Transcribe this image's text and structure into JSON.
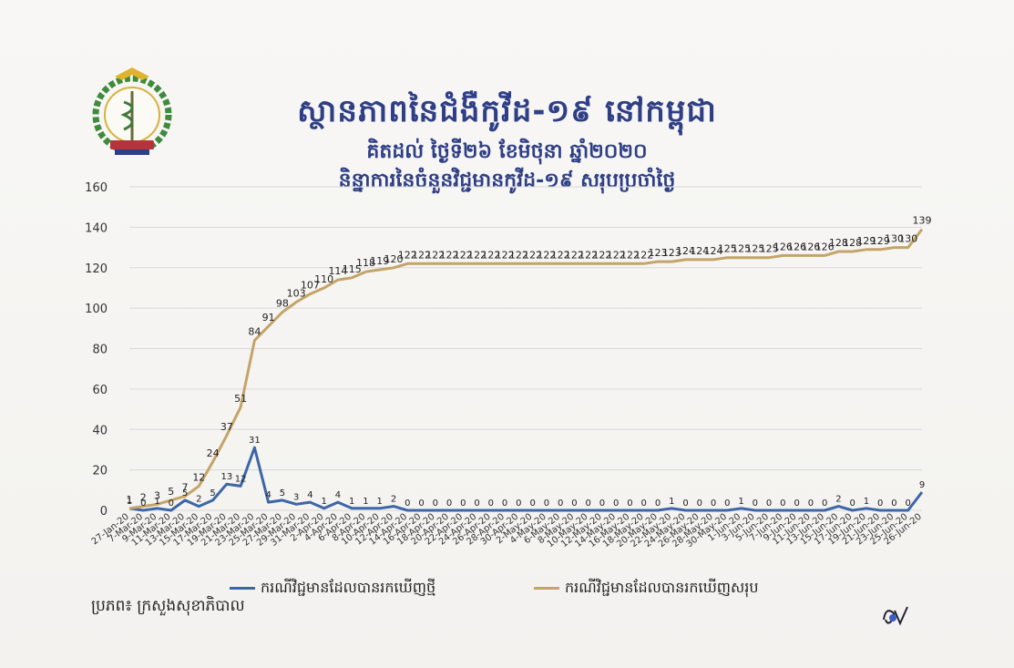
{
  "title": "ស្ថានភាពនៃជំងឺកូវីដ-១៩ នៅកម្ពុជា",
  "subtitle_date": "គិតដល់ ថ្ងៃទី២៦ ខែមិថុនា ឆ្នាំ២០២០",
  "subtitle_desc": "និន្នាការនៃចំនួនវិជ្ជមានកូវីដ-១៩ សរុបប្រចាំថ្ងៃ",
  "source": "ប្រភព៖ ក្រសួងសុខាភិបាល",
  "colors": {
    "total": "#c4a468",
    "new": "#3d66a8",
    "title": "#2f3f86",
    "grid": "#d9d9d9"
  },
  "logo": {
    "icon": "ministry-of-health-emblem"
  },
  "chart_data": {
    "type": "line",
    "x": [
      "27-Jan-20",
      "7-Mar-20",
      "9-Mar-20",
      "11-Mar-20",
      "13-Mar-20",
      "15-Mar-20",
      "17-Mar-20",
      "19-Mar-20",
      "21-Mar-20",
      "23-Mar-20",
      "25-Mar-20",
      "27-Mar-20",
      "29-Mar-20",
      "31-Mar-20",
      "2-Apr-20",
      "4-Apr-20",
      "6-Apr-20",
      "8-Apr-20",
      "10-Apr-20",
      "12-Apr-20",
      "14-Apr-20",
      "16-Apr-20",
      "18-Apr-20",
      "20-Apr-20",
      "22-Apr-20",
      "24-Apr-20",
      "26-Apr-20",
      "28-Apr-20",
      "30-Apr-20",
      "2-May-20",
      "4-May-20",
      "6-May-20",
      "8-May-20",
      "10-May-20",
      "12-May-20",
      "14-May-20",
      "16-May-20",
      "18-May-20",
      "20-May-20",
      "22-May-20",
      "24-May-20",
      "26-May-20",
      "28-May-20",
      "30-May-20",
      "1-Jun-20",
      "3-Jun-20",
      "5-Jun-20",
      "7-Jun-20",
      "9-Jun-20",
      "11-Jun-20",
      "13-Jun-20",
      "15-Jun-20",
      "17-Jun-20",
      "19-Jun-20",
      "21-Jun-20",
      "23-Jun-20",
      "25-Jun-20",
      "26-Jun-20"
    ],
    "ylim": [
      0,
      160
    ],
    "yticks": [
      0,
      20,
      40,
      60,
      80,
      100,
      120,
      140,
      160
    ],
    "grid": true,
    "legend_position": "bottom",
    "series": [
      {
        "name": "ករណីវិជ្ជមានដែលបានរកឃើញថ្មី",
        "values": [
          1,
          0,
          1,
          0,
          5,
          2,
          5,
          13,
          12,
          31,
          4,
          5,
          3,
          4,
          1,
          4,
          1,
          1,
          1,
          2,
          0,
          0,
          0,
          0,
          0,
          0,
          0,
          0,
          0,
          0,
          0,
          0,
          0,
          0,
          0,
          0,
          0,
          0,
          0,
          1,
          0,
          0,
          0,
          0,
          1,
          0,
          0,
          0,
          0,
          0,
          0,
          2,
          0,
          1,
          0,
          0,
          0,
          9
        ]
      },
      {
        "name": "ករណីវិជ្ជមានដែលបានរកឃើញសរុប",
        "values": [
          1,
          2,
          3,
          5,
          7,
          12,
          24,
          37,
          51,
          84,
          91,
          98,
          103,
          107,
          110,
          114,
          115,
          118,
          119,
          120,
          122,
          122,
          122,
          122,
          122,
          122,
          122,
          122,
          122,
          122,
          122,
          122,
          122,
          122,
          122,
          122,
          122,
          122,
          123,
          123,
          124,
          124,
          124,
          125,
          125,
          125,
          125,
          126,
          126,
          126,
          126,
          128,
          128,
          129,
          129,
          130,
          130,
          139
        ]
      }
    ],
    "new_point_labels": [
      "1",
      "0",
      "1",
      "0",
      "5",
      "2",
      "5",
      "13",
      "12",
      "31",
      "4",
      "5",
      "3",
      "4",
      "1",
      "4",
      "1",
      "1",
      "1",
      "2",
      "0",
      "0",
      "0",
      "0",
      "0",
      "0",
      "0",
      "0",
      "0",
      "0",
      "0",
      "0",
      "0",
      "0",
      "0",
      "0",
      "0",
      "0",
      "0",
      "1",
      "0",
      "0",
      "0",
      "0",
      "1",
      "0",
      "0",
      "0",
      "0",
      "0",
      "0",
      "2",
      "0",
      "1",
      "0",
      "0",
      "0",
      "9"
    ],
    "total_point_labels": [
      "1",
      "2",
      "3",
      "5",
      "7",
      "12",
      "24",
      "37",
      "51",
      "84",
      "91",
      "98",
      "103",
      "107",
      "110",
      "114",
      "115",
      "118",
      "119",
      "120",
      "122",
      "122",
      "122",
      "122",
      "122",
      "122",
      "122",
      "122",
      "122",
      "122",
      "122",
      "122",
      "122",
      "122",
      "122",
      "122",
      "122",
      "122",
      "123",
      "123",
      "124",
      "124",
      "124",
      "125",
      "125",
      "125",
      "125",
      "126",
      "126",
      "126",
      "126",
      "128",
      "128",
      "129",
      "129",
      "130",
      "130",
      "139"
    ]
  }
}
